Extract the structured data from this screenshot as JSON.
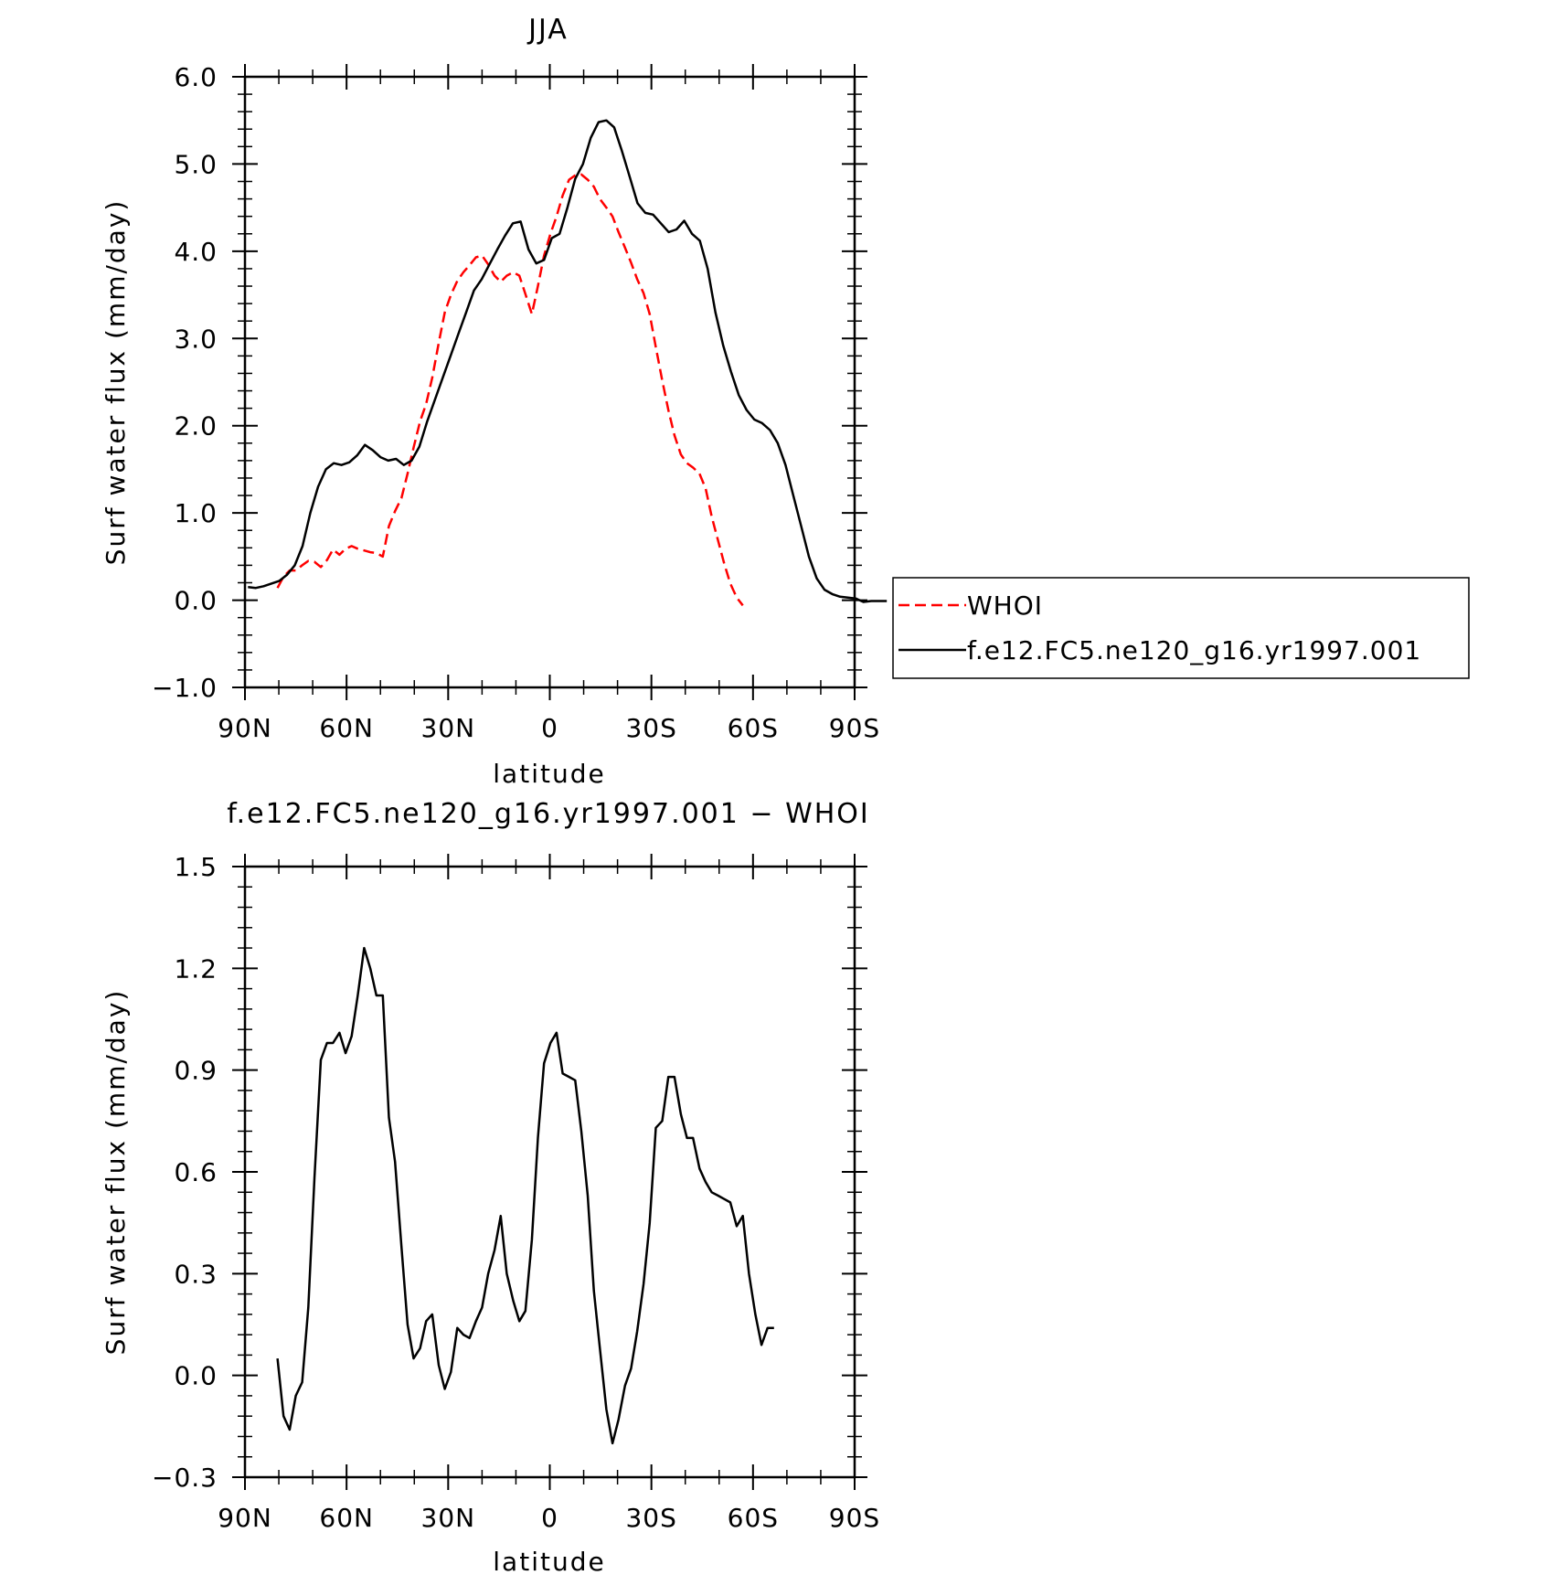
{
  "chart_data": [
    {
      "type": "line",
      "title": "JJA",
      "xlabel": "latitude",
      "ylabel": "Surf water flux (mm/day)",
      "xlim": [
        90,
        -90
      ],
      "ylim": [
        -1.0,
        6.0
      ],
      "x_tick_values": [
        90,
        60,
        30,
        0,
        -30,
        -60,
        -90
      ],
      "x_tick_labels": [
        "90N",
        "60N",
        "30N",
        "0",
        "30S",
        "60S",
        "90S"
      ],
      "y_tick_values": [
        -1,
        0,
        1,
        2,
        3,
        4,
        5,
        6
      ],
      "y_tick_labels": [
        "−1.0",
        "0.0",
        "1.0",
        "2.0",
        "3.0",
        "4.0",
        "5.0",
        "6.0"
      ],
      "grid": false,
      "legend_position": "right",
      "series": [
        {
          "name": "WHOI",
          "color": "#ff0000",
          "dash": "dashed",
          "points": [
            [
              80.4,
              0.14
            ],
            [
              78.6,
              0.27
            ],
            [
              76.8,
              0.34
            ],
            [
              75.0,
              0.34
            ],
            [
              73.1,
              0.4
            ],
            [
              71.3,
              0.45
            ],
            [
              69.5,
              0.44
            ],
            [
              67.6,
              0.38
            ],
            [
              65.8,
              0.46
            ],
            [
              64.0,
              0.58
            ],
            [
              62.1,
              0.52
            ],
            [
              60.3,
              0.59
            ],
            [
              58.5,
              0.62
            ],
            [
              56.7,
              0.59
            ],
            [
              54.8,
              0.57
            ],
            [
              53.0,
              0.55
            ],
            [
              51.2,
              0.54
            ],
            [
              49.3,
              0.5
            ],
            [
              47.5,
              0.85
            ],
            [
              45.7,
              1.02
            ],
            [
              43.8,
              1.17
            ],
            [
              42.0,
              1.45
            ],
            [
              40.2,
              1.75
            ],
            [
              38.3,
              2.05
            ],
            [
              36.5,
              2.25
            ],
            [
              34.7,
              2.55
            ],
            [
              32.8,
              2.95
            ],
            [
              31.0,
              3.3
            ],
            [
              29.2,
              3.5
            ],
            [
              27.3,
              3.66
            ],
            [
              25.5,
              3.76
            ],
            [
              23.7,
              3.84
            ],
            [
              21.8,
              3.93
            ],
            [
              20.0,
              3.95
            ],
            [
              18.2,
              3.85
            ],
            [
              16.3,
              3.72
            ],
            [
              14.5,
              3.65
            ],
            [
              12.7,
              3.72
            ],
            [
              10.8,
              3.76
            ],
            [
              9.0,
              3.72
            ],
            [
              7.2,
              3.51
            ],
            [
              5.3,
              3.28
            ],
            [
              3.5,
              3.6
            ],
            [
              1.7,
              3.95
            ],
            [
              -0.2,
              4.2
            ],
            [
              -2.0,
              4.4
            ],
            [
              -3.8,
              4.64
            ],
            [
              -5.7,
              4.82
            ],
            [
              -7.5,
              4.87
            ],
            [
              -9.3,
              4.88
            ],
            [
              -11.2,
              4.82
            ],
            [
              -13.0,
              4.74
            ],
            [
              -14.8,
              4.6
            ],
            [
              -16.7,
              4.5
            ],
            [
              -18.5,
              4.4
            ],
            [
              -20.3,
              4.22
            ],
            [
              -22.2,
              4.04
            ],
            [
              -24.0,
              3.87
            ],
            [
              -25.8,
              3.68
            ],
            [
              -27.7,
              3.52
            ],
            [
              -29.5,
              3.28
            ],
            [
              -31.3,
              2.9
            ],
            [
              -33.2,
              2.52
            ],
            [
              -35.0,
              2.18
            ],
            [
              -36.8,
              1.89
            ],
            [
              -38.7,
              1.67
            ],
            [
              -40.5,
              1.57
            ],
            [
              -42.3,
              1.52
            ],
            [
              -44.2,
              1.45
            ],
            [
              -46.0,
              1.28
            ],
            [
              -47.8,
              0.96
            ],
            [
              -49.7,
              0.68
            ],
            [
              -51.5,
              0.42
            ],
            [
              -53.3,
              0.19
            ],
            [
              -55.2,
              0.03
            ],
            [
              -57.0,
              -0.06
            ]
          ]
        },
        {
          "name": "f.e12.FC5.ne120_g16.yr1997.001",
          "color": "#000000",
          "dash": "solid",
          "points": [
            [
              89.1,
              0.15
            ],
            [
              86.8,
              0.14
            ],
            [
              84.5,
              0.16
            ],
            [
              82.2,
              0.19
            ],
            [
              79.9,
              0.22
            ],
            [
              77.6,
              0.29
            ],
            [
              75.3,
              0.4
            ],
            [
              73.0,
              0.62
            ],
            [
              70.7,
              1.0
            ],
            [
              68.4,
              1.3
            ],
            [
              66.1,
              1.5
            ],
            [
              63.8,
              1.57
            ],
            [
              61.5,
              1.55
            ],
            [
              59.2,
              1.58
            ],
            [
              56.9,
              1.66
            ],
            [
              54.6,
              1.78
            ],
            [
              52.3,
              1.72
            ],
            [
              50.0,
              1.64
            ],
            [
              47.7,
              1.6
            ],
            [
              45.4,
              1.62
            ],
            [
              43.1,
              1.55
            ],
            [
              40.8,
              1.6
            ],
            [
              38.5,
              1.76
            ],
            [
              36.2,
              2.05
            ],
            [
              33.9,
              2.3
            ],
            [
              31.6,
              2.55
            ],
            [
              29.3,
              2.8
            ],
            [
              27.0,
              3.05
            ],
            [
              24.7,
              3.3
            ],
            [
              22.4,
              3.55
            ],
            [
              20.1,
              3.68
            ],
            [
              17.8,
              3.85
            ],
            [
              15.5,
              4.02
            ],
            [
              13.2,
              4.18
            ],
            [
              10.9,
              4.32
            ],
            [
              8.6,
              4.34
            ],
            [
              6.3,
              4.02
            ],
            [
              4.0,
              3.86
            ],
            [
              1.7,
              3.9
            ],
            [
              -0.6,
              4.15
            ],
            [
              -2.9,
              4.2
            ],
            [
              -5.2,
              4.5
            ],
            [
              -7.5,
              4.83
            ],
            [
              -9.8,
              5.0
            ],
            [
              -12.1,
              5.3
            ],
            [
              -14.4,
              5.48
            ],
            [
              -16.7,
              5.5
            ],
            [
              -19.0,
              5.42
            ],
            [
              -21.3,
              5.15
            ],
            [
              -23.6,
              4.85
            ],
            [
              -25.9,
              4.55
            ],
            [
              -28.2,
              4.44
            ],
            [
              -30.5,
              4.42
            ],
            [
              -32.8,
              4.32
            ],
            [
              -35.1,
              4.22
            ],
            [
              -37.4,
              4.25
            ],
            [
              -39.7,
              4.35
            ],
            [
              -42.0,
              4.2
            ],
            [
              -44.3,
              4.12
            ],
            [
              -46.6,
              3.8
            ],
            [
              -48.9,
              3.3
            ],
            [
              -51.2,
              2.92
            ],
            [
              -53.5,
              2.62
            ],
            [
              -55.8,
              2.35
            ],
            [
              -58.1,
              2.18
            ],
            [
              -60.4,
              2.07
            ],
            [
              -62.7,
              2.03
            ],
            [
              -65.0,
              1.95
            ],
            [
              -67.3,
              1.8
            ],
            [
              -69.6,
              1.55
            ],
            [
              -71.9,
              1.2
            ],
            [
              -74.2,
              0.85
            ],
            [
              -76.5,
              0.5
            ],
            [
              -78.8,
              0.25
            ],
            [
              -81.1,
              0.12
            ],
            [
              -83.4,
              0.07
            ],
            [
              -85.7,
              0.04
            ],
            [
              -88.0,
              0.03
            ],
            [
              -90.3,
              0.02
            ],
            [
              -92.6,
              -0.02
            ],
            [
              -94.9,
              -0.01
            ],
            [
              -97.2,
              -0.01
            ],
            [
              -99.5,
              -0.01
            ]
          ]
        }
      ]
    },
    {
      "type": "line",
      "title": "f.e12.FC5.ne120_g16.yr1997.001 − WHOI",
      "xlabel": "latitude",
      "ylabel": "Surf water flux (mm/day)",
      "xlim": [
        90,
        -90
      ],
      "ylim": [
        -0.3,
        1.5
      ],
      "x_tick_values": [
        90,
        60,
        30,
        0,
        -30,
        -60,
        -90
      ],
      "x_tick_labels": [
        "90N",
        "60N",
        "30N",
        "0",
        "30S",
        "60S",
        "90S"
      ],
      "y_tick_values": [
        -0.3,
        0,
        0.3,
        0.6,
        0.9,
        1.2,
        1.5
      ],
      "y_tick_labels": [
        "−0.3",
        "0.0",
        "0.3",
        "0.6",
        "0.9",
        "1.2",
        "1.5"
      ],
      "grid": false,
      "series": [
        {
          "color": "#000000",
          "dash": "solid",
          "points": [
            [
              80.4,
              0.05
            ],
            [
              78.6,
              -0.12
            ],
            [
              76.8,
              -0.16
            ],
            [
              75.0,
              -0.06
            ],
            [
              73.1,
              -0.02
            ],
            [
              71.3,
              0.2
            ],
            [
              69.5,
              0.58
            ],
            [
              67.6,
              0.93
            ],
            [
              65.8,
              0.98
            ],
            [
              64.0,
              0.98
            ],
            [
              62.1,
              1.01
            ],
            [
              60.3,
              0.95
            ],
            [
              58.5,
              1.0
            ],
            [
              56.7,
              1.12
            ],
            [
              54.8,
              1.26
            ],
            [
              53.0,
              1.2
            ],
            [
              51.2,
              1.12
            ],
            [
              49.3,
              1.12
            ],
            [
              47.5,
              0.76
            ],
            [
              45.7,
              0.63
            ],
            [
              43.8,
              0.38
            ],
            [
              42.0,
              0.15
            ],
            [
              40.2,
              0.05
            ],
            [
              38.3,
              0.08
            ],
            [
              36.5,
              0.16
            ],
            [
              34.7,
              0.18
            ],
            [
              32.8,
              0.03
            ],
            [
              31.0,
              -0.04
            ],
            [
              29.2,
              0.01
            ],
            [
              27.3,
              0.14
            ],
            [
              25.5,
              0.12
            ],
            [
              23.7,
              0.11
            ],
            [
              21.8,
              0.16
            ],
            [
              20.0,
              0.2
            ],
            [
              18.2,
              0.3
            ],
            [
              16.3,
              0.37
            ],
            [
              14.5,
              0.47
            ],
            [
              12.7,
              0.3
            ],
            [
              10.8,
              0.22
            ],
            [
              9.0,
              0.16
            ],
            [
              7.2,
              0.19
            ],
            [
              5.3,
              0.4
            ],
            [
              3.5,
              0.7
            ],
            [
              1.7,
              0.92
            ],
            [
              -0.2,
              0.98
            ],
            [
              -2.0,
              1.01
            ],
            [
              -3.8,
              0.89
            ],
            [
              -5.7,
              0.88
            ],
            [
              -7.5,
              0.87
            ],
            [
              -9.3,
              0.72
            ],
            [
              -11.2,
              0.53
            ],
            [
              -13.0,
              0.25
            ],
            [
              -14.8,
              0.08
            ],
            [
              -16.7,
              -0.1
            ],
            [
              -18.5,
              -0.2
            ],
            [
              -20.3,
              -0.13
            ],
            [
              -22.2,
              -0.03
            ],
            [
              -24.0,
              0.02
            ],
            [
              -25.8,
              0.13
            ],
            [
              -27.7,
              0.27
            ],
            [
              -29.5,
              0.45
            ],
            [
              -31.3,
              0.73
            ],
            [
              -33.2,
              0.75
            ],
            [
              -35.0,
              0.88
            ],
            [
              -36.8,
              0.88
            ],
            [
              -38.7,
              0.77
            ],
            [
              -40.5,
              0.7
            ],
            [
              -42.3,
              0.7
            ],
            [
              -44.2,
              0.61
            ],
            [
              -46.0,
              0.57
            ],
            [
              -47.8,
              0.54
            ],
            [
              -49.7,
              0.53
            ],
            [
              -51.5,
              0.52
            ],
            [
              -53.3,
              0.51
            ],
            [
              -55.2,
              0.44
            ],
            [
              -57.0,
              0.47
            ],
            [
              -58.8,
              0.3
            ],
            [
              -60.7,
              0.18
            ],
            [
              -62.5,
              0.09
            ],
            [
              -64.3,
              0.14
            ],
            [
              -66.2,
              0.14
            ]
          ]
        }
      ]
    }
  ]
}
